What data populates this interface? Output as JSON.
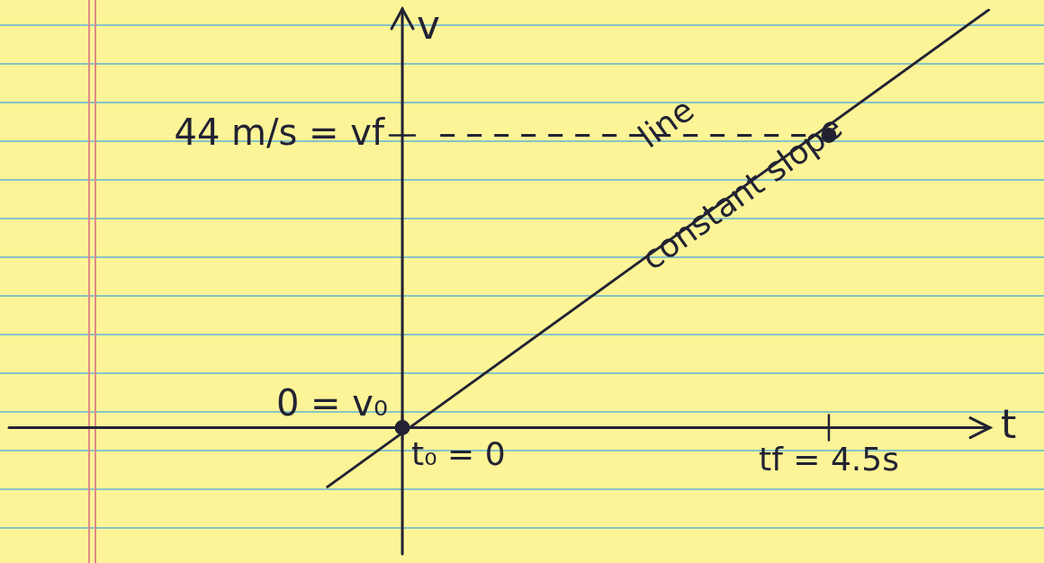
{
  "chart_data": {
    "type": "line",
    "x_label": "t",
    "y_label": "v",
    "series": [
      {
        "x": [
          -0.8,
          6.2
        ],
        "values": [
          -9,
          63
        ],
        "color": "#222233",
        "line_style": "solid",
        "marker": "none"
      },
      {
        "x": [
          0.4,
          4.3
        ],
        "values": [
          44,
          44
        ],
        "color": "#222233",
        "line_style": "dashed",
        "marker": "none"
      },
      {
        "x": [
          0,
          4.5
        ],
        "values": [
          0,
          44
        ],
        "color": "#222233",
        "line_style": "none",
        "marker": "circle"
      }
    ],
    "xlim": [
      -4.15,
      6.2
    ],
    "ylim": [
      -19,
      63
    ],
    "xticks": [
      {
        "value": 0,
        "label": "t₀ = 0"
      },
      {
        "value": 4.5,
        "label": "tf = 4.5s"
      }
    ],
    "yticks": [
      {
        "value": 0,
        "label": "0 = v₀"
      },
      {
        "value": 44,
        "label": "44 m/s = vf"
      }
    ],
    "grid": false,
    "annotations": [
      {
        "text": "line",
        "x": 2.8,
        "y": 45.5
      },
      {
        "text": "constant slope",
        "x": 3.6,
        "y": 35
      }
    ]
  }
}
